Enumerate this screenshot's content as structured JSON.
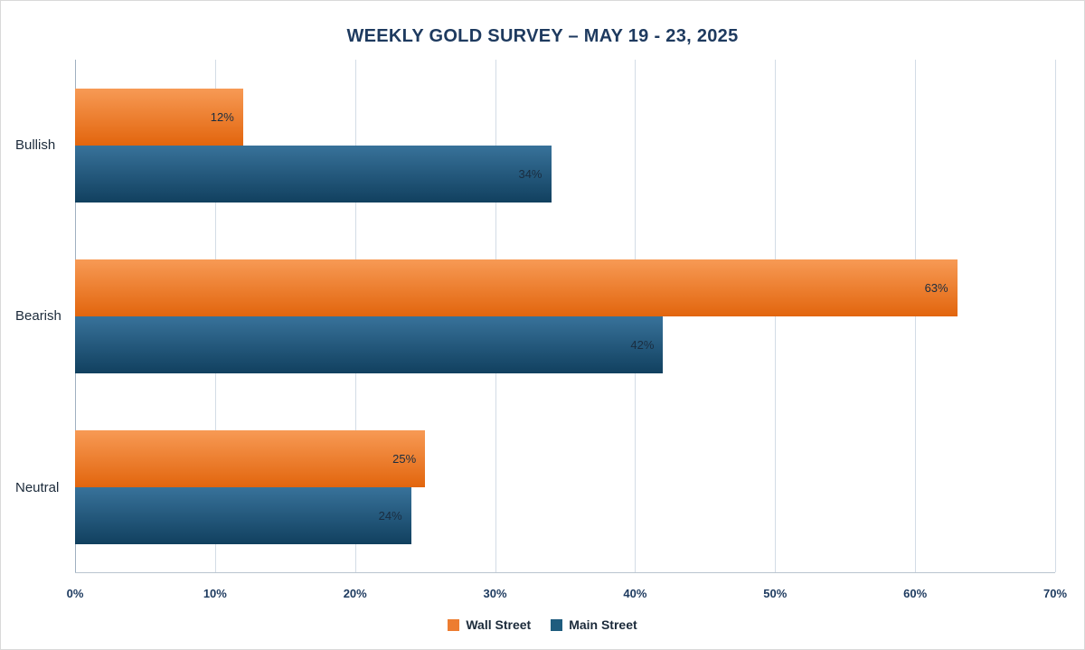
{
  "chart": {
    "title": "WEEKLY GOLD SURVEY – MAY 19 - 23, 2025"
  },
  "chart_data": {
    "type": "bar",
    "orientation": "horizontal",
    "title": "WEEKLY GOLD SURVEY – MAY 19 - 23, 2025",
    "categories": [
      "Bullish",
      "Bearish",
      "Neutral"
    ],
    "series": [
      {
        "name": "Wall Street",
        "values": [
          12,
          63,
          25
        ],
        "color_top": "#f79a55",
        "color_bottom": "#e2650d",
        "legend_color": "#ed7d31"
      },
      {
        "name": "Main Street",
        "values": [
          34,
          42,
          24
        ],
        "color_top": "#38729a",
        "color_bottom": "#11405f",
        "legend_color": "#1f5c7e"
      }
    ],
    "value_suffix": "%",
    "xlabel": "",
    "ylabel": "",
    "xlim": [
      0,
      70
    ],
    "x_ticks": [
      "0%",
      "10%",
      "20%",
      "30%",
      "40%",
      "50%",
      "60%",
      "70%"
    ],
    "grid": true,
    "legend_position": "bottom"
  }
}
